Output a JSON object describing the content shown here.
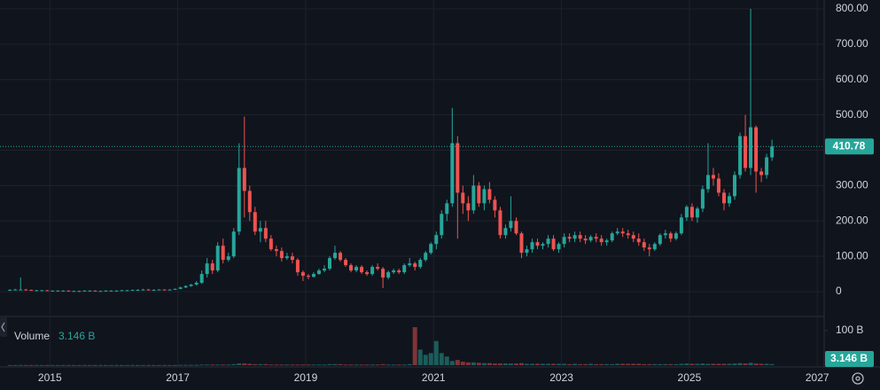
{
  "chart_data": {
    "type": "candlestick",
    "up_color": "#26a69a",
    "down_color": "#ef5350",
    "grid": true,
    "xlim": [
      2014.22,
      2027.08
    ],
    "xticks": [
      2015,
      2017,
      2019,
      2021,
      2023,
      2025,
      2027
    ],
    "ylim": [
      -65,
      825
    ],
    "yticks": [
      0,
      {
        "value": 100,
        "label": "100.00"
      },
      {
        "value": 200,
        "label": "200.00"
      },
      {
        "value": 300,
        "label": "300.00"
      },
      {
        "value": 400,
        "label": "400.00"
      },
      {
        "value": 500,
        "label": "500.00"
      },
      {
        "value": 600,
        "label": "600.00"
      },
      {
        "value": 700,
        "label": "700.00"
      },
      {
        "value": 800,
        "label": "800.00"
      }
    ],
    "x": [
      2014.375,
      2014.458,
      2014.542,
      2014.625,
      2014.708,
      2014.792,
      2014.875,
      2014.958,
      2015.042,
      2015.125,
      2015.208,
      2015.292,
      2015.375,
      2015.458,
      2015.542,
      2015.625,
      2015.708,
      2015.792,
      2015.875,
      2015.958,
      2016.042,
      2016.125,
      2016.208,
      2016.292,
      2016.375,
      2016.458,
      2016.542,
      2016.625,
      2016.708,
      2016.792,
      2016.875,
      2016.958,
      2017.042,
      2017.125,
      2017.208,
      2017.292,
      2017.375,
      2017.458,
      2017.542,
      2017.625,
      2017.708,
      2017.792,
      2017.875,
      2017.958,
      2018.042,
      2018.125,
      2018.208,
      2018.292,
      2018.375,
      2018.458,
      2018.542,
      2018.625,
      2018.708,
      2018.792,
      2018.875,
      2018.958,
      2019.042,
      2019.125,
      2019.208,
      2019.292,
      2019.375,
      2019.458,
      2019.542,
      2019.625,
      2019.708,
      2019.792,
      2019.875,
      2019.958,
      2020.042,
      2020.125,
      2020.208,
      2020.292,
      2020.375,
      2020.458,
      2020.542,
      2020.625,
      2020.708,
      2020.792,
      2020.875,
      2020.958,
      2021.042,
      2021.125,
      2021.208,
      2021.292,
      2021.375,
      2021.458,
      2021.542,
      2021.625,
      2021.708,
      2021.792,
      2021.875,
      2021.958,
      2022.042,
      2022.125,
      2022.208,
      2022.292,
      2022.375,
      2022.458,
      2022.542,
      2022.625,
      2022.708,
      2022.792,
      2022.875,
      2022.958,
      2023.042,
      2023.125,
      2023.208,
      2023.292,
      2023.375,
      2023.458,
      2023.542,
      2023.625,
      2023.708,
      2023.792,
      2023.875,
      2023.958,
      2024.042,
      2024.125,
      2024.208,
      2024.292,
      2024.375,
      2024.458,
      2024.542,
      2024.625,
      2024.708,
      2024.792,
      2024.875,
      2024.958,
      2025.042,
      2025.125,
      2025.208,
      2025.292,
      2025.375,
      2025.458,
      2025.542,
      2025.625,
      2025.708,
      2025.792,
      2025.875,
      2025.958,
      2026.042,
      2026.125,
      2026.208,
      2026.292
    ],
    "open": [
      5,
      5,
      6,
      6,
      5,
      4,
      4,
      4,
      3,
      3,
      3,
      3,
      2,
      2,
      2,
      3,
      3,
      2,
      2,
      3,
      3,
      3,
      4,
      4,
      5,
      5,
      6,
      5,
      5,
      6,
      5,
      6,
      8,
      12,
      16,
      20,
      25,
      50,
      80,
      60,
      130,
      90,
      100,
      170,
      350,
      285,
      225,
      170,
      180,
      150,
      120,
      115,
      95,
      100,
      90,
      55,
      45,
      42,
      50,
      60,
      65,
      95,
      110,
      90,
      75,
      60,
      70,
      55,
      50,
      70,
      65,
      40,
      55,
      60,
      55,
      75,
      80,
      70,
      90,
      110,
      135,
      160,
      220,
      250,
      420,
      280,
      250,
      230,
      300,
      250,
      290,
      260,
      230,
      160,
      180,
      200,
      165,
      110,
      120,
      140,
      130,
      135,
      150,
      120,
      135,
      155,
      150,
      160,
      150,
      145,
      155,
      150,
      140,
      145,
      165,
      170,
      165,
      160,
      150,
      140,
      125,
      120,
      135,
      160,
      165,
      150,
      165,
      210,
      240,
      210,
      235,
      290,
      330,
      320,
      280,
      250,
      270,
      330,
      440,
      350,
      465,
      340,
      330,
      380
    ],
    "high": [
      7,
      8,
      40,
      8,
      6,
      5,
      5,
      5,
      4,
      4,
      4,
      4,
      3,
      3,
      4,
      4,
      4,
      3,
      4,
      4,
      4,
      5,
      5,
      6,
      7,
      8,
      8,
      7,
      7,
      7,
      7,
      9,
      14,
      18,
      22,
      30,
      60,
      95,
      90,
      140,
      150,
      110,
      180,
      420,
      495,
      300,
      240,
      200,
      200,
      160,
      130,
      125,
      110,
      110,
      95,
      60,
      50,
      55,
      65,
      75,
      100,
      130,
      115,
      95,
      80,
      75,
      75,
      60,
      75,
      80,
      70,
      60,
      65,
      65,
      80,
      95,
      85,
      95,
      115,
      140,
      170,
      230,
      260,
      520,
      440,
      300,
      270,
      330,
      310,
      300,
      310,
      270,
      240,
      190,
      270,
      210,
      170,
      130,
      150,
      150,
      140,
      160,
      160,
      140,
      165,
      165,
      170,
      170,
      160,
      160,
      165,
      160,
      150,
      170,
      180,
      180,
      175,
      170,
      165,
      150,
      135,
      140,
      165,
      175,
      170,
      170,
      220,
      245,
      250,
      240,
      300,
      420,
      350,
      335,
      290,
      280,
      340,
      450,
      500,
      800,
      470,
      350,
      390,
      430
    ],
    "low": [
      4,
      4,
      4,
      4,
      3,
      3,
      3,
      2,
      2,
      2,
      2,
      2,
      1,
      1,
      2,
      2,
      2,
      1,
      2,
      2,
      2,
      3,
      3,
      4,
      4,
      4,
      5,
      4,
      4,
      5,
      4,
      5,
      7,
      10,
      14,
      18,
      22,
      40,
      50,
      55,
      80,
      85,
      95,
      160,
      210,
      200,
      160,
      140,
      140,
      115,
      100,
      85,
      90,
      80,
      45,
      30,
      35,
      40,
      48,
      55,
      60,
      90,
      85,
      70,
      55,
      55,
      50,
      45,
      45,
      60,
      10,
      35,
      50,
      50,
      50,
      70,
      60,
      65,
      85,
      105,
      120,
      150,
      200,
      240,
      150,
      220,
      200,
      220,
      240,
      230,
      250,
      210,
      150,
      150,
      170,
      160,
      95,
      100,
      110,
      120,
      120,
      125,
      115,
      110,
      125,
      140,
      140,
      140,
      135,
      140,
      140,
      130,
      130,
      140,
      160,
      155,
      150,
      140,
      130,
      115,
      100,
      115,
      130,
      150,
      140,
      145,
      160,
      200,
      200,
      195,
      225,
      280,
      300,
      270,
      230,
      240,
      260,
      320,
      340,
      330,
      280,
      310,
      320,
      370
    ],
    "close": [
      5,
      6,
      6,
      5,
      4,
      4,
      4,
      3,
      3,
      3,
      3,
      2,
      2,
      2,
      3,
      3,
      2,
      2,
      3,
      3,
      3,
      4,
      4,
      5,
      5,
      6,
      5,
      5,
      6,
      5,
      6,
      8,
      12,
      16,
      20,
      25,
      50,
      80,
      60,
      130,
      90,
      100,
      170,
      350,
      285,
      225,
      170,
      180,
      150,
      120,
      115,
      95,
      100,
      90,
      55,
      45,
      42,
      50,
      60,
      65,
      95,
      110,
      90,
      75,
      60,
      70,
      55,
      50,
      70,
      65,
      40,
      55,
      60,
      55,
      75,
      80,
      70,
      90,
      110,
      135,
      160,
      220,
      250,
      420,
      280,
      250,
      230,
      300,
      250,
      290,
      260,
      230,
      160,
      180,
      200,
      165,
      110,
      120,
      140,
      130,
      135,
      150,
      120,
      135,
      155,
      150,
      160,
      150,
      145,
      155,
      150,
      140,
      145,
      165,
      170,
      165,
      160,
      150,
      140,
      125,
      120,
      135,
      160,
      165,
      150,
      165,
      210,
      240,
      210,
      235,
      290,
      330,
      320,
      280,
      250,
      270,
      330,
      440,
      350,
      465,
      340,
      330,
      380,
      410.78
    ],
    "volume": {
      "name": "Volume",
      "last_value_label": "3.146 B",
      "ylim": [
        0,
        118
      ],
      "yticks": [
        {
          "value": 100,
          "label": "100 B"
        }
      ],
      "values": [
        0.5,
        0.5,
        0.5,
        0.5,
        0.5,
        0.5,
        0.5,
        0.5,
        0.5,
        0.5,
        0.5,
        0.5,
        0.5,
        0.5,
        0.5,
        0.5,
        0.5,
        0.5,
        0.5,
        0.5,
        0.5,
        0.5,
        0.5,
        0.5,
        0.5,
        0.5,
        0.5,
        0.5,
        0.5,
        0.5,
        0.5,
        0.5,
        1,
        1,
        1,
        1,
        2,
        2,
        2,
        2,
        2,
        2,
        3,
        5,
        5,
        4,
        3,
        3,
        3,
        2,
        2,
        2,
        2,
        2,
        2,
        2,
        2,
        2,
        2,
        2,
        3,
        3,
        3,
        2,
        2,
        2,
        2,
        2,
        2,
        2,
        3,
        2,
        2,
        2,
        2,
        3,
        110,
        45,
        30,
        35,
        70,
        35,
        25,
        12,
        15,
        10,
        8,
        8,
        7,
        6,
        6,
        5,
        5,
        5,
        5,
        5,
        6,
        4,
        4,
        4,
        4,
        4,
        4,
        4,
        4,
        3,
        4,
        3,
        3,
        4,
        3,
        3,
        3,
        3,
        4,
        4,
        4,
        4,
        4,
        3,
        3,
        3,
        3,
        3,
        3,
        3,
        4,
        5,
        4,
        4,
        5,
        4,
        4,
        4,
        4,
        4,
        5,
        6,
        5,
        7,
        5,
        4,
        4,
        3.146
      ]
    }
  }
}
